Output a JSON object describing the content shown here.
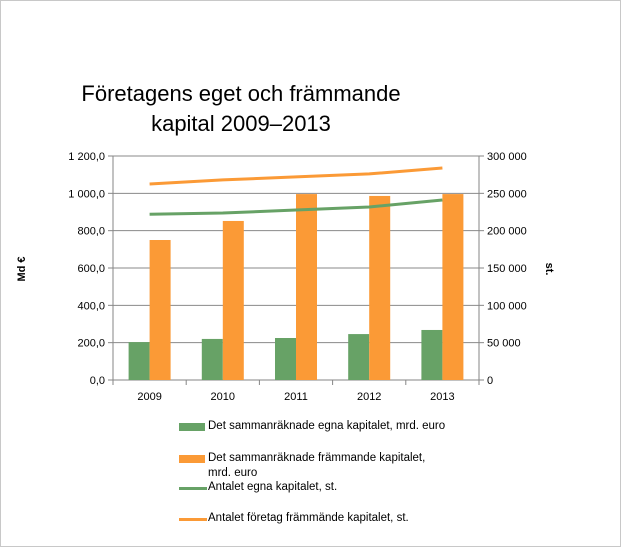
{
  "chart_data": {
    "type": "bar",
    "title_lines": [
      "Företagens eget och främmande",
      "kapital 2009–2013"
    ],
    "categories": [
      "2009",
      "2010",
      "2011",
      "2012",
      "2013"
    ],
    "ylabel": "Md €",
    "y2label": "st.",
    "ylim": [
      0,
      1200
    ],
    "y2lim": [
      0,
      300000
    ],
    "yticks": [
      "0,0",
      "200,0",
      "400,0",
      "600,0",
      "800,0",
      "1 000,0",
      "1 200,0"
    ],
    "y2ticks": [
      "0",
      "50 000",
      "100 000",
      "150 000",
      "200 000",
      "250 000",
      "300 000"
    ],
    "grid": true,
    "legend_position": "bottom",
    "series": [
      {
        "name": "Det sammanräknade egna kapitalet, mrd. euro",
        "type": "bar",
        "axis": "left",
        "color": "#67a266",
        "values": [
          203,
          220,
          225,
          246,
          268
        ]
      },
      {
        "name": "Det sammanräknade främmande kapitalet, mrd. euro",
        "type": "bar",
        "axis": "left",
        "color": "#fb9a36",
        "values": [
          750,
          852,
          996,
          986,
          996
        ]
      },
      {
        "name": "Antalet egna kapitalet, st.",
        "type": "line",
        "axis": "right",
        "color": "#67a266",
        "values": [
          222000,
          223600,
          227700,
          231700,
          241000
        ]
      },
      {
        "name": "Antalet företag främmände kapitalet, st.",
        "type": "line",
        "axis": "right",
        "color": "#fb9a36",
        "values": [
          262500,
          268000,
          272000,
          276000,
          284000
        ]
      }
    ],
    "legend_lines": [
      [
        "Det sammanräknade egna kapitalet, mrd. euro"
      ],
      [
        "Det sammanräknade främmande kapitalet,",
        "mrd. euro"
      ],
      [
        "Antalet egna kapitalet, st."
      ],
      [
        "Antalet företag främmände kapitalet, st."
      ]
    ]
  }
}
